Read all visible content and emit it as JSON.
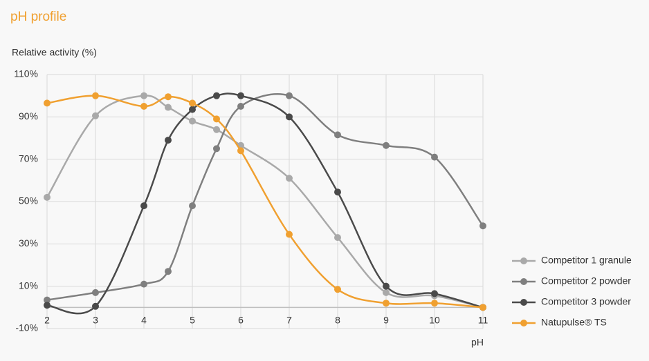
{
  "chart_data": {
    "type": "line",
    "title": "pH profile",
    "y_label": "Relative activity (%)",
    "x_label": "pH",
    "xlim": [
      2,
      11
    ],
    "xticks": [
      2,
      3,
      4,
      5,
      6,
      7,
      8,
      9,
      10,
      11
    ],
    "ylim": [
      -10,
      110
    ],
    "yticks": [
      {
        "value": -10,
        "label": "-10%"
      },
      {
        "value": 10,
        "label": "10%"
      },
      {
        "value": 30,
        "label": "30%"
      },
      {
        "value": 50,
        "label": "50%"
      },
      {
        "value": 70,
        "label": "70%"
      },
      {
        "value": 90,
        "label": "90%"
      },
      {
        "value": 110,
        "label": "110%"
      }
    ],
    "grid": true,
    "legend": "right",
    "series": [
      {
        "name": "Competitor 1 granule",
        "color": "#a9a9a9",
        "x": [
          2,
          3,
          4,
          4.5,
          5,
          5.5,
          6,
          7,
          8,
          9,
          10,
          11
        ],
        "values": [
          52,
          90.5,
          100,
          94.5,
          88,
          84,
          76.5,
          61,
          33,
          7,
          5.5,
          0
        ]
      },
      {
        "name": "Competitor 2 powder",
        "color": "#7f7f7f",
        "x": [
          2,
          3,
          4,
          4.5,
          5,
          5.5,
          6,
          7,
          8,
          9,
          10,
          11
        ],
        "values": [
          3.5,
          7,
          11,
          17,
          48,
          75,
          95,
          100,
          81.5,
          76.5,
          71,
          38.5
        ]
      },
      {
        "name": "Competitor 3 powder",
        "color": "#4a4a4a",
        "x": [
          2,
          3,
          4,
          4.5,
          5,
          5.5,
          6,
          7,
          8,
          9,
          10,
          11
        ],
        "values": [
          1,
          0.5,
          48,
          79,
          93.5,
          100,
          100,
          90,
          54.5,
          10,
          6.5,
          0
        ]
      },
      {
        "name": "Natupulse® TS",
        "color": "#f0a030",
        "x": [
          2,
          3,
          4,
          4.5,
          5,
          5.5,
          6,
          7,
          8,
          9,
          10,
          11
        ],
        "values": [
          96.5,
          100,
          95,
          99.5,
          96.5,
          89,
          74,
          34.5,
          8.5,
          2,
          2,
          0
        ]
      }
    ]
  }
}
